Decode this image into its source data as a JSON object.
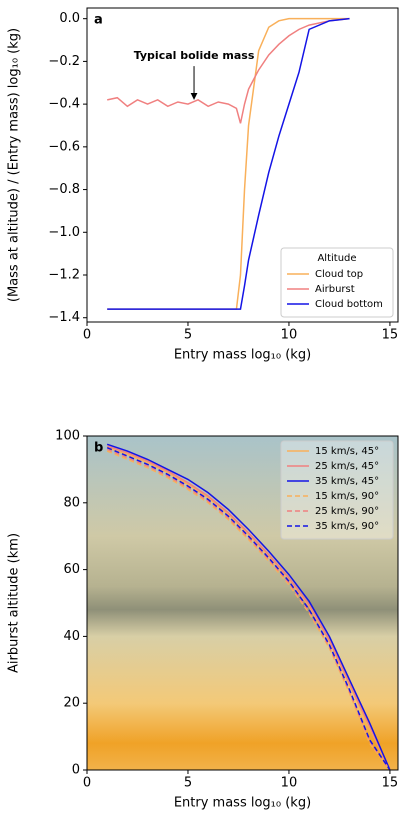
{
  "chart_data": [
    {
      "type": "line",
      "panel_label": "a",
      "xlabel": "Entry mass log₁₀ (kg)",
      "ylabel": "(Mass at altitude) / (Entry mass) log₁₀ (kg)",
      "xlim": [
        0,
        15.4
      ],
      "ylim": [
        -1.42,
        0.05
      ],
      "xticks": [
        0,
        5,
        10,
        15
      ],
      "yticks": [
        {
          "value": 0,
          "label": "0.0"
        },
        {
          "value": -0.2,
          "label": "−0.2"
        },
        {
          "value": -0.4,
          "label": "−0.4"
        },
        {
          "value": -0.6,
          "label": "−0.6"
        },
        {
          "value": -0.8,
          "label": "−0.8"
        },
        {
          "value": -1.0,
          "label": "−1.0"
        },
        {
          "value": -1.2,
          "label": "−1.2"
        },
        {
          "value": -1.4,
          "label": "−1.4"
        }
      ],
      "legend_title": "Altitude",
      "legend_position": "lower right",
      "annotation": {
        "text": "Typical bolide mass",
        "x": 5.3,
        "y": -0.4
      },
      "x": [
        1,
        1.5,
        2,
        2.5,
        3,
        3.5,
        4,
        4.5,
        5,
        5.5,
        6,
        6.5,
        7,
        7.4,
        7.6,
        7.8,
        8,
        8.5,
        9,
        9.5,
        10,
        10.5,
        11,
        12,
        13
      ],
      "series": [
        {
          "name": "Cloud top",
          "color": "#f9b05a",
          "dashed": false,
          "values": [
            -1.36,
            -1.36,
            -1.36,
            -1.36,
            -1.36,
            -1.36,
            -1.36,
            -1.36,
            -1.36,
            -1.36,
            -1.36,
            -1.36,
            -1.36,
            -1.36,
            -1.2,
            -0.8,
            -0.5,
            -0.15,
            -0.04,
            -0.01,
            0,
            0,
            0,
            0,
            0
          ]
        },
        {
          "name": "Airburst",
          "color": "#f08080",
          "dashed": false,
          "values": [
            -0.38,
            -0.37,
            -0.41,
            -0.38,
            -0.4,
            -0.38,
            -0.41,
            -0.39,
            -0.4,
            -0.38,
            -0.41,
            -0.39,
            -0.4,
            -0.42,
            -0.49,
            -0.4,
            -0.33,
            -0.24,
            -0.17,
            -0.12,
            -0.08,
            -0.05,
            -0.03,
            -0.01,
            0
          ]
        },
        {
          "name": "Cloud bottom",
          "color": "#1414e6",
          "dashed": false,
          "values": [
            -1.36,
            -1.36,
            -1.36,
            -1.36,
            -1.36,
            -1.36,
            -1.36,
            -1.36,
            -1.36,
            -1.36,
            -1.36,
            -1.36,
            -1.36,
            -1.36,
            -1.36,
            -1.25,
            -1.13,
            -0.92,
            -0.72,
            -0.55,
            -0.4,
            -0.25,
            -0.05,
            -0.01,
            0
          ]
        }
      ]
    },
    {
      "type": "line",
      "panel_label": "b",
      "xlabel": "Entry mass log₁₀ (kg)",
      "ylabel": "Airburst altitude (km)",
      "xlim": [
        0,
        15.4
      ],
      "ylim": [
        0,
        100
      ],
      "xticks": [
        0,
        5,
        10,
        15
      ],
      "yticks": [
        0,
        20,
        40,
        60,
        80,
        100
      ],
      "legend_position": "upper right",
      "x": [
        1,
        2,
        3,
        4,
        5,
        6,
        7,
        8,
        9,
        10,
        11,
        12,
        13,
        14,
        15
      ],
      "series": [
        {
          "name": "15 km/s, 45°",
          "color": "#f9b05a",
          "dashed": false,
          "values": [
            96.5,
            94.5,
            92,
            89,
            85.5,
            81.5,
            76.5,
            70.5,
            64,
            57,
            49,
            38.5,
            25.5,
            12.5,
            0
          ]
        },
        {
          "name": "25 km/s, 45°",
          "color": "#f08080",
          "dashed": false,
          "values": [
            97,
            95,
            92.5,
            89.5,
            86,
            82,
            77,
            71,
            64.5,
            57.5,
            49.5,
            39,
            26,
            13,
            0
          ]
        },
        {
          "name": "35 km/s, 45°",
          "color": "#1414e6",
          "dashed": false,
          "values": [
            97.5,
            95.5,
            93,
            90,
            87,
            83,
            78,
            72,
            65.5,
            58.5,
            50.5,
            40,
            27,
            14,
            0
          ]
        },
        {
          "name": "15 km/s, 90°",
          "color": "#f9b05a",
          "dashed": true,
          "values": [
            95.5,
            93,
            90.5,
            87.5,
            84,
            80,
            75,
            69,
            62.5,
            55.5,
            47,
            36.5,
            23,
            8,
            0
          ]
        },
        {
          "name": "25 km/s, 90°",
          "color": "#f08080",
          "dashed": true,
          "values": [
            96,
            93.5,
            91,
            88,
            84.5,
            80.5,
            75.5,
            69.5,
            63,
            56,
            47.5,
            37,
            23.5,
            8.5,
            0
          ]
        },
        {
          "name": "35 km/s, 90°",
          "color": "#1414e6",
          "dashed": true,
          "values": [
            96.5,
            94,
            91.5,
            88.5,
            85,
            81,
            76,
            70,
            63.5,
            56.5,
            48,
            37.5,
            24,
            9,
            0
          ]
        }
      ]
    }
  ]
}
